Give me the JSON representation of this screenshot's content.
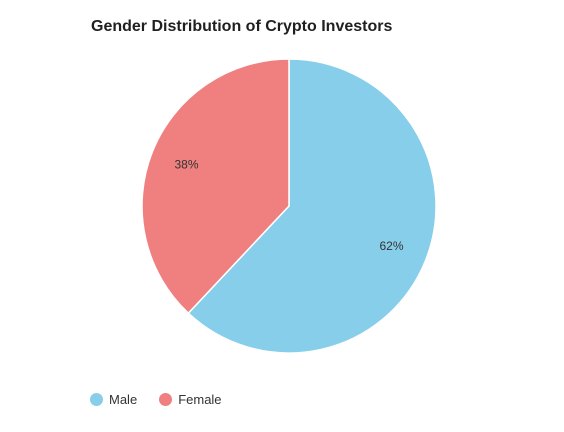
{
  "chart_data": {
    "type": "pie",
    "title": "Gender Distribution of Crypto Investors",
    "categories": [
      "Male",
      "Female"
    ],
    "values": [
      62,
      38
    ],
    "labels": [
      "62%",
      "38%"
    ],
    "colors": [
      "#87CEEB",
      "#F08080"
    ],
    "start_angle": "12 o'clock",
    "direction": "clockwise",
    "legend_position": "bottom-left"
  }
}
